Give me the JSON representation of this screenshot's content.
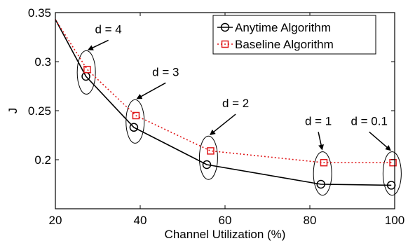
{
  "chart_data": {
    "type": "line",
    "xlabel": "Channel Utilization (%)",
    "ylabel": "J",
    "xlim": [
      20,
      100
    ],
    "ylim": [
      0.15,
      0.35
    ],
    "xticks": [
      20,
      40,
      60,
      80,
      100
    ],
    "yticks": [
      0.2,
      0.25,
      0.3,
      0.35
    ],
    "xtick_labels": [
      "20",
      "40",
      "60",
      "80",
      "100"
    ],
    "ytick_labels": [
      "0.2",
      "0.25",
      "0.3",
      "0.35"
    ],
    "grid": false,
    "legend_position": "top-right",
    "series": [
      {
        "name": "Anytime Algorithm",
        "color": "#000000",
        "line_style": "solid",
        "marker": "circle",
        "lead_in": {
          "x": 20,
          "y": 0.343
        },
        "x": [
          27.2,
          38.5,
          55.7,
          82.6,
          99.2
        ],
        "y": [
          0.285,
          0.233,
          0.195,
          0.175,
          0.174
        ]
      },
      {
        "name": "Baseline Algorithm",
        "color": "#e0191b",
        "line_style": "dotted",
        "marker": "square",
        "lead_in": {
          "x": 20,
          "y": 0.343
        },
        "x": [
          27.5,
          39.0,
          56.6,
          83.3,
          99.6
        ],
        "y": [
          0.292,
          0.245,
          0.209,
          0.197,
          0.197
        ]
      }
    ],
    "annotations": [
      {
        "text": "d = 4",
        "point": {
          "x": 27.3,
          "y": 0.289
        },
        "label_at": {
          "x": 32.5,
          "y": 0.329
        }
      },
      {
        "text": "d = 3",
        "point": {
          "x": 38.8,
          "y": 0.239
        },
        "label_at": {
          "x": 46.0,
          "y": 0.2855
        }
      },
      {
        "text": "d = 2",
        "point": {
          "x": 56.1,
          "y": 0.202
        },
        "label_at": {
          "x": 62.5,
          "y": 0.2535
        }
      },
      {
        "text": "d = 1",
        "point": {
          "x": 83.0,
          "y": 0.186
        },
        "label_at": {
          "x": 82.0,
          "y": 0.2355
        }
      },
      {
        "text": "d = 0.1",
        "point": {
          "x": 99.4,
          "y": 0.186
        },
        "label_at": {
          "x": 94.0,
          "y": 0.2355
        }
      }
    ]
  }
}
